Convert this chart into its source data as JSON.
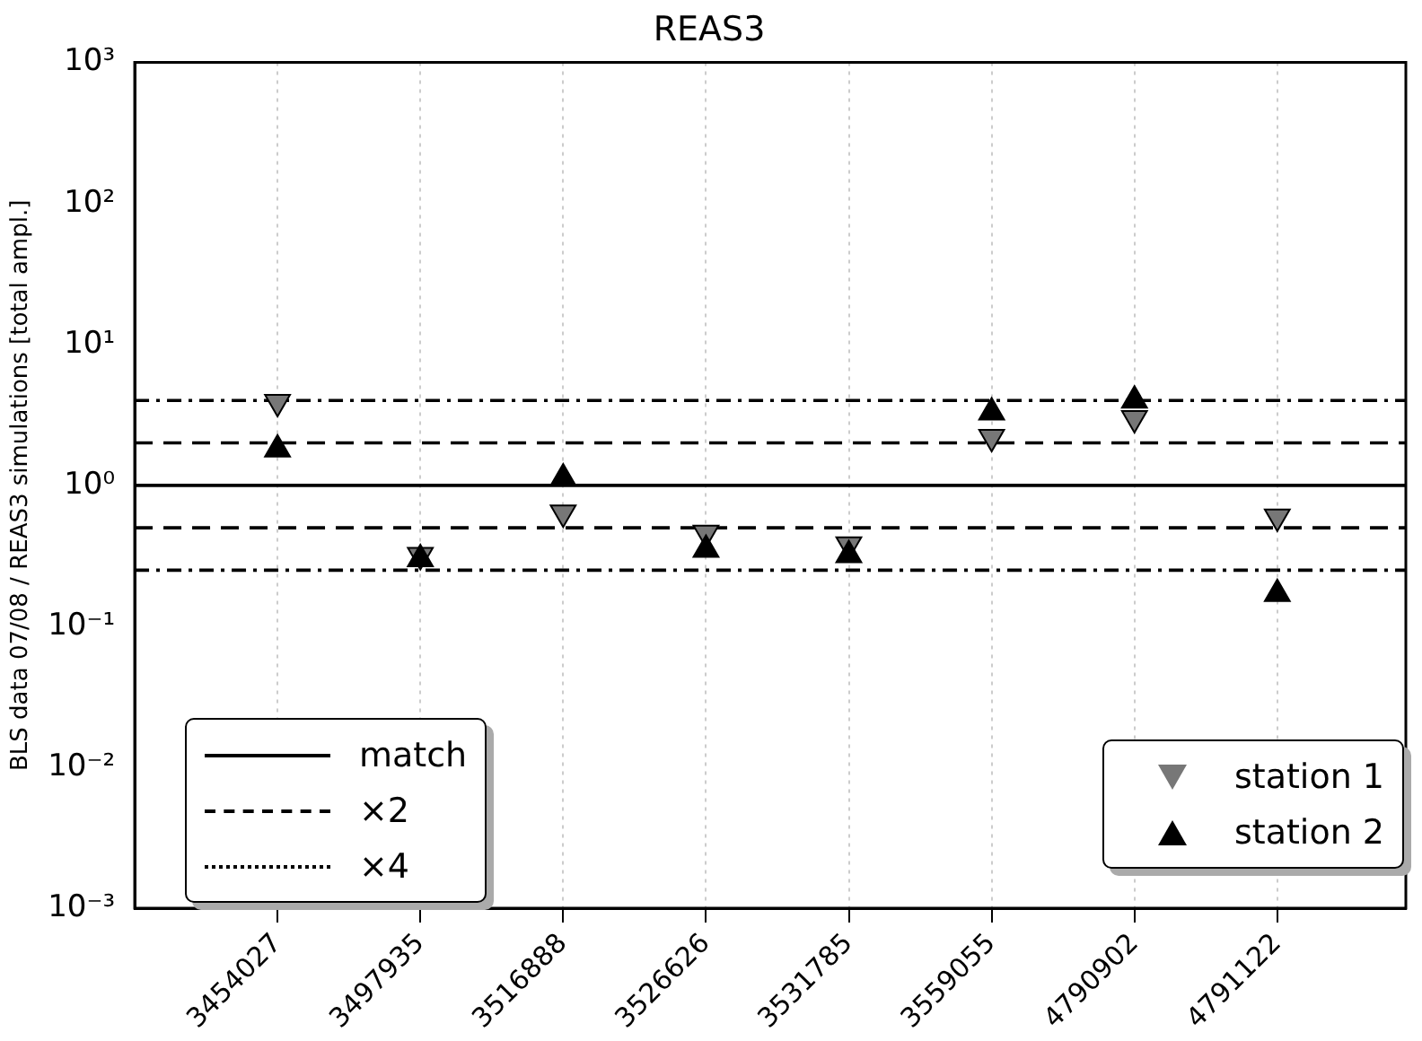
{
  "chart_data": {
    "type": "scatter",
    "title": "REAS3",
    "ylabel": "BLS data 07/08 / REAS3 simulations [total ampl.]",
    "categories": [
      "3454027",
      "3497935",
      "3516888",
      "3526626",
      "3531785",
      "3559055",
      "4790902",
      "4791122"
    ],
    "series": [
      {
        "name": "station 1",
        "color": "#777777",
        "marker": "triangle_down",
        "values": [
          3.9,
          0.32,
          0.64,
          0.46,
          0.38,
          2.2,
          3.0,
          0.6
        ]
      },
      {
        "name": "station 2",
        "color": "#000000",
        "marker": "triangle",
        "values": [
          1.8,
          0.3,
          1.12,
          0.35,
          0.32,
          3.3,
          4.0,
          0.17
        ]
      }
    ],
    "log": "y",
    "ylim": [
      0.001,
      1000
    ],
    "yticks": [
      {
        "value": 0.001,
        "label": "10⁻³"
      },
      {
        "value": 0.01,
        "label": "10⁻²"
      },
      {
        "value": 0.1,
        "label": "10⁻¹"
      },
      {
        "value": 1,
        "label": "10⁰"
      },
      {
        "value": 10,
        "label": "10¹"
      },
      {
        "value": 100,
        "label": "10²"
      },
      {
        "value": 1000,
        "label": "10³"
      }
    ],
    "ref_lines": [
      {
        "axis": "y",
        "value": 1,
        "label": "match",
        "color": "#000000",
        "line_style": "solid"
      },
      {
        "axis": "y",
        "value": 2,
        "label": "×2",
        "color": "#000000",
        "line_style": "dashed"
      },
      {
        "axis": "y",
        "value": 0.5,
        "color": "#000000",
        "line_style": "dashed"
      },
      {
        "axis": "y",
        "value": 4,
        "label": "×4",
        "color": "#000000",
        "line_style": "dashdot"
      },
      {
        "axis": "y",
        "value": 0.25,
        "color": "#000000",
        "line_style": "dashdot"
      }
    ],
    "grid": "x",
    "legend": "bottom right"
  }
}
